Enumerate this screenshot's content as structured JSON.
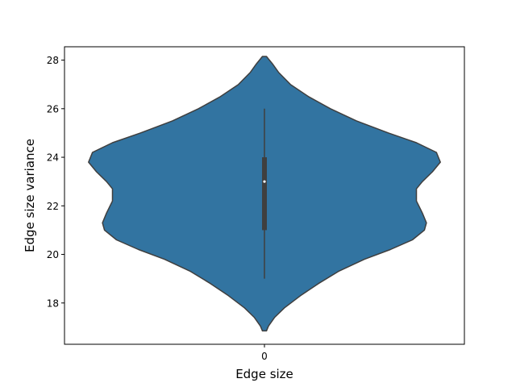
{
  "chart_data": {
    "type": "violin",
    "xlabel": "Edge size",
    "ylabel": "Edge size variance",
    "categories": [
      "0"
    ],
    "ylim": [
      16.3,
      28.55
    ],
    "yticks": [
      18,
      20,
      22,
      24,
      26,
      28
    ],
    "grid": false,
    "violin_color": "#3274a1",
    "edge_color": "#3f3f3f",
    "summary": {
      "whisker_low": 19,
      "q1": 21,
      "median": 23,
      "q3": 24,
      "whisker_high": 26
    },
    "density_profile": [
      {
        "y": 16.85,
        "half_width": 0.01
      },
      {
        "y": 17.05,
        "half_width": 0.02
      },
      {
        "y": 17.4,
        "half_width": 0.05
      },
      {
        "y": 17.8,
        "half_width": 0.1
      },
      {
        "y": 18.3,
        "half_width": 0.18
      },
      {
        "y": 18.8,
        "half_width": 0.27
      },
      {
        "y": 19.3,
        "half_width": 0.37
      },
      {
        "y": 19.8,
        "half_width": 0.5
      },
      {
        "y": 20.2,
        "half_width": 0.63
      },
      {
        "y": 20.6,
        "half_width": 0.74
      },
      {
        "y": 21.0,
        "half_width": 0.8
      },
      {
        "y": 21.3,
        "half_width": 0.81
      },
      {
        "y": 21.7,
        "half_width": 0.79
      },
      {
        "y": 22.2,
        "half_width": 0.76
      },
      {
        "y": 22.7,
        "half_width": 0.76
      },
      {
        "y": 23.0,
        "half_width": 0.79
      },
      {
        "y": 23.4,
        "half_width": 0.84
      },
      {
        "y": 23.8,
        "half_width": 0.88
      },
      {
        "y": 24.2,
        "half_width": 0.86
      },
      {
        "y": 24.6,
        "half_width": 0.76
      },
      {
        "y": 25.0,
        "half_width": 0.62
      },
      {
        "y": 25.5,
        "half_width": 0.46
      },
      {
        "y": 26.0,
        "half_width": 0.33
      },
      {
        "y": 26.5,
        "half_width": 0.22
      },
      {
        "y": 27.0,
        "half_width": 0.13
      },
      {
        "y": 27.5,
        "half_width": 0.07
      },
      {
        "y": 27.85,
        "half_width": 0.04
      },
      {
        "y": 28.05,
        "half_width": 0.02
      },
      {
        "y": 28.15,
        "half_width": 0.01
      }
    ]
  }
}
